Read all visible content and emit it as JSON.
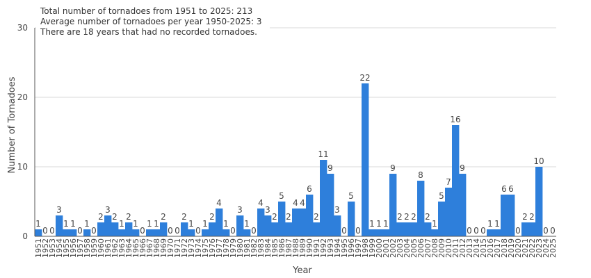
{
  "chart_data": {
    "type": "bar",
    "title": "",
    "xlabel": "Year",
    "ylabel": "Number of Tornadoes",
    "ylim": [
      0,
      30
    ],
    "yticks": [
      0,
      10,
      20,
      30
    ],
    "grid": true,
    "legend": "none",
    "bar_color": "#2e7fdb",
    "annotations": [
      "Total number of tornadoes from 1951 to 2025: 213",
      "Average number of tornadoes per year 1950-2025: 3",
      "There are 18 years that had no recorded tornadoes."
    ],
    "categories": [
      "1951",
      "1952",
      "1953",
      "1954",
      "1955",
      "1956",
      "1957",
      "1958",
      "1959",
      "1960",
      "1961",
      "1962",
      "1963",
      "1964",
      "1965",
      "1966",
      "1967",
      "1968",
      "1969",
      "1970",
      "1971",
      "1972",
      "1973",
      "1974",
      "1975",
      "1976",
      "1977",
      "1978",
      "1979",
      "1980",
      "1981",
      "1982",
      "1983",
      "1984",
      "1985",
      "1986",
      "1987",
      "1988",
      "1989",
      "1990",
      "1991",
      "1992",
      "1993",
      "1994",
      "1995",
      "1996",
      "1997",
      "1998",
      "1999",
      "2000",
      "2001",
      "2002",
      "2003",
      "2004",
      "2005",
      "2006",
      "2007",
      "2008",
      "2009",
      "2010",
      "2011",
      "2012",
      "2013",
      "2014",
      "2015",
      "2016",
      "2017",
      "2018",
      "2019",
      "2020",
      "2021",
      "2022",
      "2023",
      "2024",
      "2025"
    ],
    "values": [
      1,
      0,
      0,
      3,
      1,
      1,
      0,
      1,
      0,
      2,
      3,
      2,
      1,
      2,
      1,
      0,
      1,
      1,
      2,
      0,
      0,
      2,
      1,
      0,
      1,
      2,
      4,
      1,
      0,
      3,
      1,
      0,
      4,
      3,
      2,
      5,
      2,
      4,
      4,
      6,
      2,
      11,
      9,
      3,
      0,
      5,
      0,
      22,
      1,
      1,
      1,
      9,
      2,
      2,
      2,
      8,
      2,
      1,
      5,
      7,
      16,
      9,
      0,
      0,
      0,
      1,
      1,
      6,
      6,
      0,
      2,
      2,
      10,
      0,
      0
    ]
  }
}
